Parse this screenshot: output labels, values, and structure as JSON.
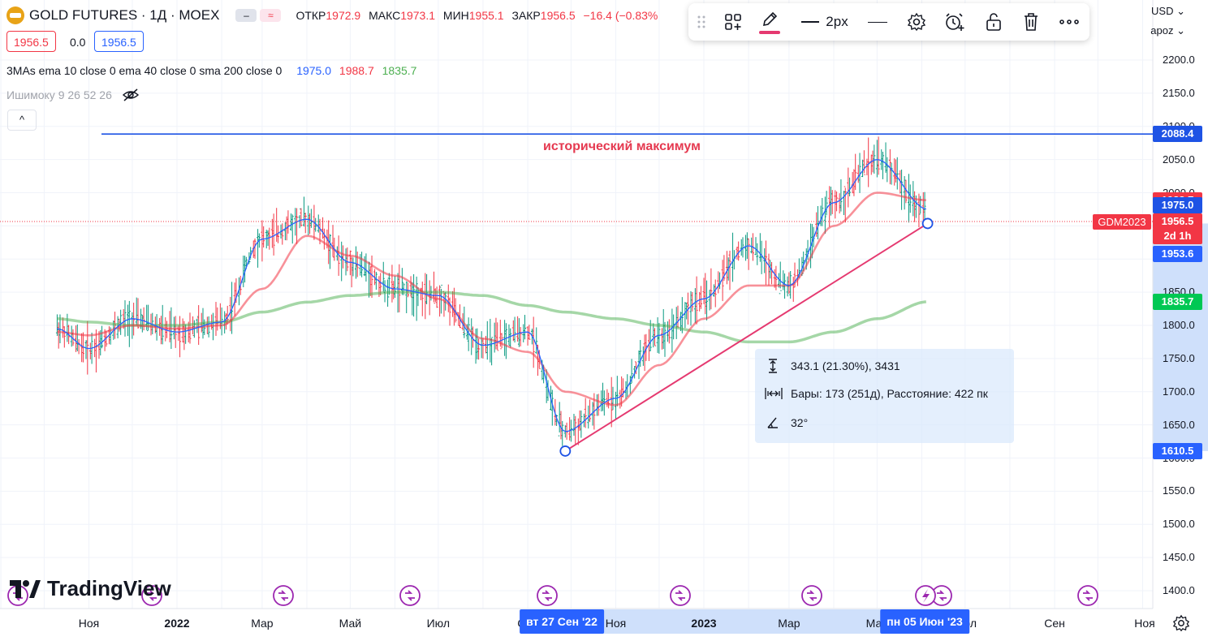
{
  "header": {
    "symbol_title": "GOLD FUTURES · 1Д · MOEX",
    "ohlc": [
      {
        "label": "ОТКР",
        "value": "1972.9"
      },
      {
        "label": "МАКС",
        "value": "1973.1"
      },
      {
        "label": "МИН",
        "value": "1955.1"
      },
      {
        "label": "ЗАКР",
        "value": "1956.5"
      }
    ],
    "change": "−16.4 (−0.83%",
    "sell_price": "1956.5",
    "spread": "0.0",
    "buy_price": "1956.5"
  },
  "indicators": {
    "mas_label": "3MAs ema 10 close 0 ema 40 close 0 sma 200 close 0",
    "mas_values": [
      "1975.0",
      "1988.7",
      "1835.7"
    ],
    "mas_colors": [
      "#2962ff",
      "#f23645",
      "#4caf50"
    ],
    "ichimoku_label": "Ишимоку 9 26 52 26",
    "collapse_glyph": "^"
  },
  "toolbar": {
    "line_width_label": "2px",
    "icons": [
      "drag-handle-icon",
      "objects-tree-icon",
      "pencil-icon",
      "line-width-icon",
      "line-style-icon",
      "settings-icon",
      "alert-add-icon",
      "unlock-icon",
      "trash-icon",
      "more-icon"
    ]
  },
  "top_right": {
    "currency": "USD",
    "user": "apoz"
  },
  "annotation": {
    "text": "исторический максимум"
  },
  "measure_box": {
    "price_range": "343.1 (21.30%), 3431",
    "bars": "Бары: 173 (251д), Расстояние: 422 пк",
    "angle": "32°"
  },
  "price_tags": [
    {
      "value": "2088.4",
      "color": "#1e53e5"
    },
    {
      "value": "1988.7",
      "color": "#f23645"
    },
    {
      "value": "1975.0",
      "color": "#1e53e5"
    },
    {
      "value": "1956.5",
      "color": "#f23645"
    },
    {
      "value": "2d 1h",
      "color": "#f23645"
    },
    {
      "value": "1953.6",
      "color": "#2962ff"
    },
    {
      "value": "1835.7",
      "color": "#00c853"
    },
    {
      "value": "1610.5",
      "color": "#2962ff"
    }
  ],
  "symbol_tag": "GDM2023",
  "x_tags": {
    "start": "вт 27 Сен '22",
    "end": "пн 05 Июн '23"
  },
  "brand": "TradingView",
  "chart_data": {
    "type": "line",
    "y_axis": {
      "ticks": [
        "2200.0",
        "2150.0",
        "2100.0",
        "2050.0",
        "2000.0",
        "1950.0",
        "1900.0",
        "1850.0",
        "1800.0",
        "1750.0",
        "1700.0",
        "1650.0",
        "1600.0",
        "1550.0",
        "1500.0",
        "1450.0",
        "1400.0"
      ],
      "range": [
        1390,
        2220
      ]
    },
    "x_axis": {
      "labels": [
        "Ноя",
        "2022",
        "Мар",
        "Май",
        "Июл",
        "Сен",
        "Ноя",
        "2023",
        "Мар",
        "Май",
        "Июл",
        "Сен",
        "Ноя"
      ]
    },
    "dates": [
      "2021-10-10",
      "2021-11-01",
      "2021-12-01",
      "2022-01-01",
      "2022-02-01",
      "2022-03-01",
      "2022-04-01",
      "2022-05-01",
      "2022-06-01",
      "2022-07-01",
      "2022-08-01",
      "2022-09-01",
      "2022-09-27",
      "2022-11-01",
      "2022-12-01",
      "2023-01-01",
      "2023-02-01",
      "2023-03-01",
      "2023-04-01",
      "2023-05-01",
      "2023-06-05"
    ],
    "series": [
      {
        "name": "ema 10",
        "color": "#2962ff",
        "values": [
          1795,
          1765,
          1810,
          1790,
          1805,
          1930,
          1960,
          1895,
          1855,
          1845,
          1770,
          1790,
          1640,
          1690,
          1785,
          1840,
          1920,
          1860,
          1985,
          2050,
          1975
        ]
      },
      {
        "name": "ema 40",
        "color": "#f23645",
        "values": [
          1790,
          1785,
          1800,
          1795,
          1800,
          1855,
          1935,
          1905,
          1875,
          1840,
          1780,
          1760,
          1700,
          1680,
          1740,
          1810,
          1860,
          1860,
          1950,
          2000,
          1988.7
        ]
      },
      {
        "name": "sma 200",
        "color": "#4caf50",
        "values": [
          1810,
          1805,
          1800,
          1800,
          1805,
          1820,
          1835,
          1845,
          1850,
          1850,
          1845,
          1830,
          1820,
          1810,
          1800,
          1790,
          1775,
          1775,
          1790,
          1810,
          1835.7
        ]
      }
    ],
    "horizontal_level": 2088.4,
    "last_price": 1956.5,
    "trendline": {
      "from": {
        "date": "2022-09-27",
        "value": 1610.5
      },
      "to": {
        "date": "2023-06-05",
        "value": 1953.6
      }
    },
    "legend": "top-left"
  }
}
